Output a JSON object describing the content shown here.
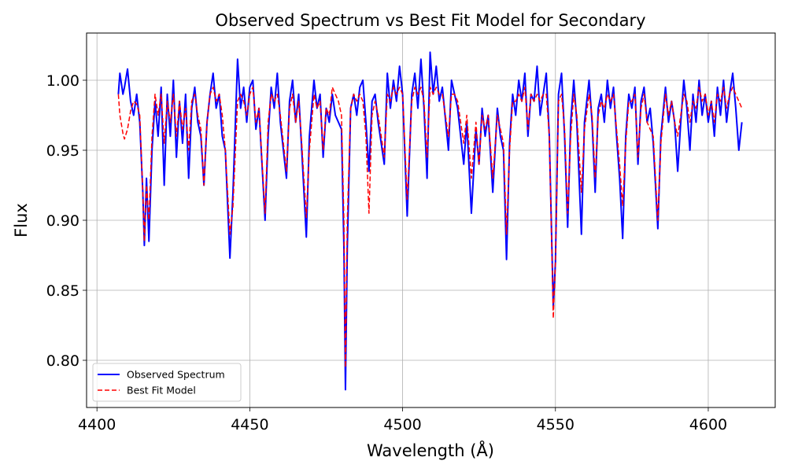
{
  "chart_data": {
    "type": "line",
    "title": "Observed Spectrum vs Best Fit Model for Secondary",
    "x_label": "Wavelength (Å)",
    "y_label": "Flux",
    "xlim": [
      4396.6,
      4621.9
    ],
    "ylim": [
      0.7663,
      1.0337
    ],
    "xticks": [
      4400,
      4450,
      4500,
      4550,
      4600
    ],
    "yticks": [
      {
        "value": 0.8,
        "label": "0.80"
      },
      0.85,
      {
        "value": 0.9,
        "label": "0.90"
      },
      0.95,
      {
        "value": 1.0,
        "label": "1.00"
      }
    ],
    "grid": true,
    "legend": "lower left",
    "x": [
      4407,
      4407.5,
      4408.5,
      4409,
      4410,
      4411,
      4412,
      4413,
      4414,
      4415,
      4415.5,
      4416.2,
      4417,
      4418,
      4419,
      4420,
      4421,
      4422,
      4423,
      4424,
      4425,
      4426,
      4427,
      4428,
      4429,
      4430,
      4431,
      4432,
      4433,
      4434,
      4435,
      4436,
      4437,
      4438,
      4439,
      4440,
      4441,
      4442,
      4443.5,
      4444.5,
      4446,
      4447,
      4448,
      4449,
      4450,
      4451,
      4452,
      4453,
      4455,
      4456,
      4457,
      4458,
      4459,
      4460,
      4462,
      4463,
      4464,
      4465,
      4466,
      4467,
      4468.5,
      4469.5,
      4471,
      4472,
      4473,
      4474,
      4475,
      4476,
      4477,
      4478,
      4479,
      4480,
      4480.8,
      4481.3,
      4481.9,
      4483,
      4484,
      4485,
      4486,
      4487,
      4488,
      4489,
      4490,
      4491,
      4492,
      4494,
      4495,
      4496,
      4497,
      4498,
      4499,
      4500,
      4501.5,
      4503,
      4504,
      4505,
      4506,
      4507,
      4508,
      4509,
      4510,
      4511,
      4512,
      4513,
      4515,
      4516,
      4517,
      4518,
      4520,
      4521,
      4522.5,
      4524,
      4525,
      4526,
      4527,
      4528,
      4529.5,
      4531,
      4532,
      4533,
      4534,
      4535,
      4536,
      4537,
      4538,
      4539,
      4540,
      4541,
      4542,
      4543,
      4544,
      4545,
      4546,
      4547,
      4548,
      4549.3,
      4550,
      4551,
      4552,
      4553,
      4554,
      4555,
      4556,
      4557,
      4558.5,
      4559.5,
      4561,
      4562,
      4563,
      4564,
      4565,
      4566,
      4567,
      4568,
      4569,
      4570,
      4571,
      4572,
      4573,
      4574,
      4575,
      4576,
      4577,
      4578,
      4579,
      4580,
      4581,
      4582,
      4583.5,
      4584.5,
      4586,
      4587,
      4588,
      4589,
      4590,
      4591,
      4592,
      4593,
      4594,
      4595,
      4596,
      4597,
      4598,
      4599,
      4600,
      4601,
      4602,
      4603,
      4604,
      4605,
      4606,
      4607,
      4608,
      4609,
      4610,
      4611
    ],
    "series": [
      {
        "name": "Observed Spectrum",
        "color": "#0000ff",
        "dash": "solid",
        "values": [
          0.99,
          1.005,
          0.99,
          0.995,
          1.008,
          0.985,
          0.975,
          0.99,
          0.97,
          0.92,
          0.882,
          0.93,
          0.885,
          0.95,
          0.985,
          0.96,
          0.995,
          0.925,
          0.99,
          0.96,
          1.0,
          0.945,
          0.985,
          0.955,
          0.99,
          0.93,
          0.98,
          0.995,
          0.97,
          0.96,
          0.925,
          0.97,
          0.99,
          1.005,
          0.98,
          0.99,
          0.96,
          0.95,
          0.873,
          0.92,
          1.015,
          0.98,
          0.995,
          0.97,
          0.995,
          1.0,
          0.965,
          0.98,
          0.9,
          0.96,
          0.995,
          0.98,
          1.005,
          0.97,
          0.93,
          0.985,
          1.0,
          0.97,
          0.99,
          0.95,
          0.888,
          0.96,
          1.0,
          0.98,
          0.99,
          0.945,
          0.98,
          0.97,
          0.99,
          0.975,
          0.97,
          0.965,
          0.88,
          0.779,
          0.88,
          0.98,
          0.99,
          0.975,
          0.995,
          1.0,
          0.97,
          0.935,
          0.985,
          0.99,
          0.97,
          0.94,
          1.005,
          0.98,
          1.0,
          0.985,
          1.01,
          0.99,
          0.903,
          0.99,
          1.005,
          0.98,
          1.015,
          0.98,
          0.93,
          1.02,
          0.99,
          1.01,
          0.985,
          0.995,
          0.95,
          1.0,
          0.99,
          0.98,
          0.94,
          0.97,
          0.905,
          0.965,
          0.94,
          0.98,
          0.96,
          0.975,
          0.92,
          0.98,
          0.96,
          0.95,
          0.872,
          0.955,
          0.99,
          0.975,
          1.0,
          0.985,
          1.005,
          0.96,
          0.99,
          0.985,
          1.01,
          0.975,
          0.99,
          1.005,
          0.96,
          0.838,
          0.87,
          0.99,
          1.005,
          0.96,
          0.895,
          0.97,
          1.0,
          0.97,
          0.89,
          0.97,
          1.0,
          0.97,
          0.92,
          0.98,
          0.99,
          0.97,
          1.0,
          0.98,
          0.995,
          0.96,
          0.93,
          0.887,
          0.96,
          0.99,
          0.98,
          0.995,
          0.94,
          0.985,
          0.995,
          0.97,
          0.98,
          0.955,
          0.894,
          0.96,
          0.995,
          0.97,
          0.985,
          0.97,
          0.935,
          0.97,
          1.0,
          0.98,
          0.95,
          0.99,
          0.97,
          1.0,
          0.975,
          0.99,
          0.97,
          0.985,
          0.96,
          0.995,
          0.975,
          1.0,
          0.97,
          0.99,
          1.005,
          0.98,
          0.95,
          0.97
        ]
      },
      {
        "name": "Best Fit Model",
        "color": "#ff0000",
        "dash": "dashed",
        "values": [
          0.99,
          0.975,
          0.962,
          0.958,
          0.965,
          0.978,
          0.985,
          0.983,
          0.975,
          0.92,
          0.885,
          0.925,
          0.9,
          0.96,
          0.99,
          0.975,
          0.99,
          0.955,
          0.985,
          0.97,
          0.99,
          0.96,
          0.985,
          0.965,
          0.98,
          0.95,
          0.985,
          0.99,
          0.975,
          0.965,
          0.925,
          0.97,
          0.99,
          0.995,
          0.985,
          0.99,
          0.975,
          0.95,
          0.89,
          0.91,
          0.985,
          0.99,
          0.985,
          0.975,
          0.99,
          0.995,
          0.97,
          0.98,
          0.905,
          0.97,
          0.99,
          0.985,
          0.99,
          0.975,
          0.935,
          0.98,
          0.99,
          0.97,
          0.985,
          0.955,
          0.902,
          0.95,
          0.99,
          0.98,
          0.985,
          0.95,
          0.98,
          0.975,
          0.995,
          0.99,
          0.985,
          0.975,
          0.9,
          0.795,
          0.9,
          0.98,
          0.99,
          0.985,
          0.99,
          0.985,
          0.96,
          0.905,
          0.975,
          0.985,
          0.975,
          0.945,
          0.99,
          0.985,
          0.995,
          0.99,
          0.995,
          0.99,
          0.915,
          0.985,
          0.995,
          0.99,
          0.995,
          0.985,
          0.945,
          0.995,
          0.99,
          0.995,
          0.99,
          0.99,
          0.96,
          0.99,
          0.99,
          0.985,
          0.955,
          0.975,
          0.93,
          0.97,
          0.94,
          0.975,
          0.965,
          0.975,
          0.93,
          0.975,
          0.965,
          0.955,
          0.89,
          0.95,
          0.985,
          0.985,
          0.99,
          0.985,
          0.995,
          0.965,
          0.99,
          0.985,
          0.99,
          0.985,
          0.99,
          0.99,
          0.96,
          0.83,
          0.87,
          0.985,
          0.99,
          0.965,
          0.905,
          0.96,
          0.99,
          0.975,
          0.92,
          0.965,
          0.99,
          0.975,
          0.93,
          0.975,
          0.985,
          0.98,
          0.99,
          0.985,
          0.99,
          0.965,
          0.94,
          0.91,
          0.955,
          0.985,
          0.985,
          0.99,
          0.945,
          0.98,
          0.99,
          0.97,
          0.965,
          0.96,
          0.9,
          0.955,
          0.99,
          0.975,
          0.985,
          0.97,
          0.96,
          0.975,
          0.99,
          0.985,
          0.97,
          0.985,
          0.98,
          0.995,
          0.985,
          0.99,
          0.975,
          0.985,
          0.97,
          0.99,
          0.985,
          0.995,
          0.98,
          0.99,
          0.995,
          0.99,
          0.985,
          0.98
        ]
      }
    ]
  }
}
